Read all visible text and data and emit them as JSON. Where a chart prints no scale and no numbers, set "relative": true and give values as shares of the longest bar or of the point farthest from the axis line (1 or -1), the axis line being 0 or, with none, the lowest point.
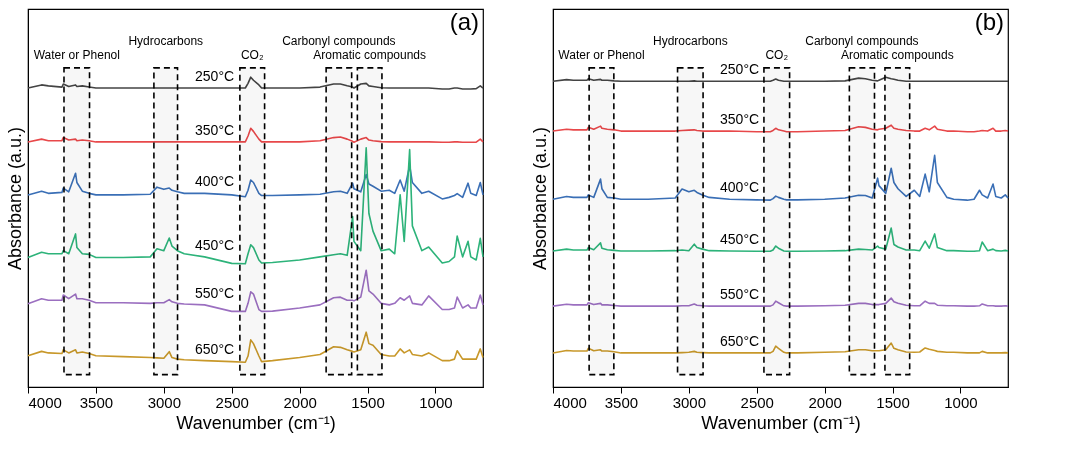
{
  "chart_data": [
    {
      "type": "line",
      "title": "(a)",
      "xlabel": "Wavenumber (cm⁻¹)",
      "ylabel": "Absorbance (a.u.)",
      "relative": true,
      "xlim": [
        4000,
        650
      ],
      "xticks": [
        4000,
        3500,
        3000,
        2500,
        2000,
        1500,
        1000
      ],
      "x": [
        4000,
        3900,
        3850,
        3750,
        3740,
        3700,
        3650,
        3640,
        3600,
        3550,
        3500,
        3300,
        3100,
        3050,
        3000,
        2960,
        2940,
        2900,
        2850,
        2700,
        2500,
        2400,
        2380,
        2360,
        2340,
        2300,
        2280,
        2200,
        2000,
        1850,
        1750,
        1700,
        1650,
        1610,
        1600,
        1550,
        1510,
        1490,
        1460,
        1400,
        1340,
        1300,
        1260,
        1230,
        1190,
        1170,
        1100,
        1050,
        950,
        900,
        860,
        840,
        800,
        760,
        740,
        700,
        670,
        650
      ],
      "series": [
        {
          "name": "250°C",
          "color": "#444444",
          "values": [
            0.965,
            0.975,
            0.972,
            0.968,
            0.978,
            0.97,
            0.975,
            0.97,
            0.972,
            0.968,
            0.965,
            0.965,
            0.965,
            0.965,
            0.965,
            0.965,
            0.965,
            0.965,
            0.965,
            0.965,
            0.965,
            0.965,
            0.98,
            1.0,
            0.99,
            0.975,
            0.965,
            0.965,
            0.965,
            0.968,
            0.978,
            0.978,
            0.972,
            0.968,
            0.965,
            0.978,
            0.98,
            0.972,
            0.97,
            0.966,
            0.965,
            0.965,
            0.965,
            0.965,
            0.965,
            0.965,
            0.965,
            0.965,
            0.962,
            0.962,
            0.965,
            0.965,
            0.962,
            0.962,
            0.962,
            0.963,
            0.972,
            0.965
          ]
        },
        {
          "name": "350°C",
          "color": "#e8484a",
          "values": [
            0.791,
            0.8,
            0.795,
            0.795,
            0.805,
            0.797,
            0.8,
            0.795,
            0.797,
            0.795,
            0.791,
            0.791,
            0.791,
            0.791,
            0.791,
            0.791,
            0.791,
            0.791,
            0.791,
            0.791,
            0.791,
            0.791,
            0.81,
            0.835,
            0.825,
            0.8,
            0.791,
            0.791,
            0.791,
            0.795,
            0.805,
            0.807,
            0.8,
            0.793,
            0.79,
            0.8,
            0.805,
            0.797,
            0.795,
            0.792,
            0.791,
            0.791,
            0.791,
            0.791,
            0.791,
            0.791,
            0.791,
            0.791,
            0.79,
            0.79,
            0.791,
            0.791,
            0.79,
            0.79,
            0.79,
            0.79,
            0.8,
            0.791
          ]
        },
        {
          "name": "400°C",
          "color": "#3a6fb6",
          "values": [
            0.62,
            0.632,
            0.625,
            0.628,
            0.642,
            0.63,
            0.69,
            0.66,
            0.632,
            0.625,
            0.62,
            0.62,
            0.622,
            0.645,
            0.638,
            0.642,
            0.635,
            0.63,
            0.625,
            0.625,
            0.62,
            0.614,
            0.635,
            0.668,
            0.66,
            0.625,
            0.618,
            0.618,
            0.62,
            0.622,
            0.63,
            0.632,
            0.625,
            0.658,
            0.64,
            0.63,
            0.686,
            0.655,
            0.648,
            0.632,
            0.635,
            0.625,
            0.668,
            0.632,
            0.715,
            0.66,
            0.625,
            0.632,
            0.607,
            0.612,
            0.618,
            0.624,
            0.612,
            0.658,
            0.625,
            0.618,
            0.66,
            0.62
          ]
        },
        {
          "name": "450°C",
          "color": "#2db37a",
          "values": [
            0.418,
            0.435,
            0.43,
            0.43,
            0.44,
            0.43,
            0.494,
            0.45,
            0.43,
            0.428,
            0.418,
            0.418,
            0.42,
            0.446,
            0.44,
            0.481,
            0.455,
            0.44,
            0.43,
            0.42,
            0.399,
            0.398,
            0.43,
            0.459,
            0.45,
            0.41,
            0.4,
            0.402,
            0.41,
            0.42,
            0.427,
            0.43,
            0.425,
            0.55,
            0.47,
            0.44,
            0.772,
            0.56,
            0.503,
            0.44,
            0.445,
            0.43,
            0.62,
            0.47,
            0.766,
            0.52,
            0.44,
            0.452,
            0.4,
            0.405,
            0.42,
            0.487,
            0.42,
            0.47,
            0.42,
            0.41,
            0.48,
            0.42
          ]
        },
        {
          "name": "550°C",
          "color": "#9b6fc0",
          "values": [
            0.269,
            0.285,
            0.28,
            0.28,
            0.297,
            0.285,
            0.3,
            0.285,
            0.285,
            0.28,
            0.272,
            0.272,
            0.27,
            0.272,
            0.272,
            0.282,
            0.275,
            0.27,
            0.268,
            0.265,
            0.244,
            0.244,
            0.27,
            0.307,
            0.3,
            0.25,
            0.244,
            0.245,
            0.255,
            0.265,
            0.288,
            0.29,
            0.28,
            0.28,
            0.278,
            0.29,
            0.377,
            0.31,
            0.3,
            0.27,
            0.265,
            0.27,
            0.288,
            0.28,
            0.294,
            0.27,
            0.265,
            0.294,
            0.25,
            0.25,
            0.255,
            0.29,
            0.255,
            0.265,
            0.255,
            0.255,
            0.297,
            0.265
          ]
        },
        {
          "name": "650°C",
          "color": "#c8982a",
          "values": [
            0.101,
            0.115,
            0.11,
            0.108,
            0.12,
            0.11,
            0.12,
            0.11,
            0.113,
            0.108,
            0.101,
            0.098,
            0.095,
            0.094,
            0.093,
            0.114,
            0.095,
            0.09,
            0.088,
            0.085,
            0.082,
            0.08,
            0.1,
            0.152,
            0.14,
            0.1,
            0.082,
            0.085,
            0.095,
            0.105,
            0.13,
            0.128,
            0.12,
            0.115,
            0.113,
            0.12,
            0.177,
            0.14,
            0.135,
            0.105,
            0.1,
            0.1,
            0.123,
            0.11,
            0.12,
            0.105,
            0.1,
            0.11,
            0.085,
            0.085,
            0.09,
            0.117,
            0.09,
            0.09,
            0.09,
            0.09,
            0.123,
            0.095
          ]
        }
      ],
      "bands": [
        {
          "axis": "x",
          "from": 3735,
          "to": 3547,
          "label": "Water or Phenol"
        },
        {
          "axis": "x",
          "from": 3073,
          "to": 2899,
          "label": "Hydrocarbons"
        },
        {
          "axis": "x",
          "from": 2440,
          "to": 2258,
          "label": "CO₂"
        },
        {
          "axis": "x",
          "from": 1805,
          "to": 1617,
          "label": "Carbonyl compounds"
        },
        {
          "axis": "x",
          "from": 1575,
          "to": 1394,
          "label": "Aromatic compounds"
        }
      ]
    },
    {
      "type": "line",
      "title": "(b)",
      "xlabel": "Wavenumber (cm⁻¹)",
      "ylabel": "Absorbance (a.u.)",
      "relative": true,
      "xlim": [
        4000,
        650
      ],
      "xticks": [
        4000,
        3500,
        3000,
        2500,
        2000,
        1500,
        1000
      ],
      "x": [
        4000,
        3900,
        3850,
        3750,
        3740,
        3700,
        3650,
        3640,
        3600,
        3550,
        3500,
        3300,
        3100,
        3050,
        3000,
        2960,
        2940,
        2900,
        2850,
        2700,
        2500,
        2400,
        2380,
        2360,
        2340,
        2300,
        2280,
        2200,
        2000,
        1850,
        1750,
        1700,
        1650,
        1610,
        1600,
        1550,
        1510,
        1490,
        1460,
        1400,
        1340,
        1300,
        1260,
        1230,
        1190,
        1170,
        1100,
        1050,
        950,
        900,
        860,
        840,
        800,
        760,
        740,
        700,
        670,
        650
      ],
      "series": [
        {
          "name": "250°C",
          "color": "#444444",
          "values": [
            0.987,
            0.992,
            0.99,
            0.99,
            0.995,
            0.99,
            0.993,
            0.99,
            0.99,
            0.988,
            0.987,
            0.987,
            0.987,
            0.987,
            0.987,
            0.988,
            0.987,
            0.987,
            0.987,
            0.987,
            0.987,
            0.987,
            0.99,
            0.994,
            0.99,
            0.987,
            0.987,
            0.987,
            0.987,
            0.988,
            0.997,
            0.995,
            0.99,
            0.988,
            0.99,
            1.0,
            0.995,
            0.993,
            0.99,
            0.987,
            0.987,
            0.987,
            0.987,
            0.987,
            0.987,
            0.987,
            0.987,
            0.987,
            0.987,
            0.987,
            0.987,
            0.987,
            0.987,
            0.987,
            0.987,
            0.987,
            0.987,
            0.987
          ]
        },
        {
          "name": "350°C",
          "color": "#e8484a",
          "values": [
            0.826,
            0.832,
            0.83,
            0.83,
            0.838,
            0.832,
            0.842,
            0.835,
            0.832,
            0.83,
            0.826,
            0.826,
            0.826,
            0.828,
            0.829,
            0.83,
            0.828,
            0.826,
            0.826,
            0.826,
            0.824,
            0.824,
            0.828,
            0.835,
            0.83,
            0.826,
            0.824,
            0.824,
            0.826,
            0.828,
            0.84,
            0.838,
            0.832,
            0.83,
            0.832,
            0.835,
            0.845,
            0.835,
            0.832,
            0.828,
            0.826,
            0.826,
            0.835,
            0.83,
            0.842,
            0.832,
            0.826,
            0.826,
            0.824,
            0.824,
            0.826,
            0.828,
            0.826,
            0.835,
            0.826,
            0.826,
            0.828,
            0.826
          ]
        },
        {
          "name": "400°C",
          "color": "#3a6fb6",
          "values": [
            0.606,
            0.615,
            0.612,
            0.612,
            0.62,
            0.612,
            0.671,
            0.64,
            0.612,
            0.61,
            0.606,
            0.606,
            0.61,
            0.639,
            0.63,
            0.635,
            0.628,
            0.62,
            0.612,
            0.606,
            0.604,
            0.603,
            0.608,
            0.616,
            0.612,
            0.606,
            0.604,
            0.604,
            0.606,
            0.61,
            0.619,
            0.618,
            0.61,
            0.674,
            0.65,
            0.625,
            0.706,
            0.66,
            0.64,
            0.615,
            0.635,
            0.615,
            0.687,
            0.63,
            0.748,
            0.66,
            0.612,
            0.606,
            0.603,
            0.606,
            0.635,
            0.62,
            0.61,
            0.655,
            0.615,
            0.61,
            0.62,
            0.61
          ]
        },
        {
          "name": "450°C",
          "color": "#2db37a",
          "values": [
            0.439,
            0.445,
            0.442,
            0.442,
            0.45,
            0.443,
            0.465,
            0.448,
            0.443,
            0.441,
            0.439,
            0.439,
            0.44,
            0.442,
            0.44,
            0.461,
            0.45,
            0.445,
            0.44,
            0.439,
            0.438,
            0.438,
            0.442,
            0.455,
            0.448,
            0.439,
            0.438,
            0.438,
            0.439,
            0.44,
            0.445,
            0.444,
            0.442,
            0.455,
            0.45,
            0.445,
            0.513,
            0.46,
            0.452,
            0.442,
            0.442,
            0.44,
            0.471,
            0.448,
            0.494,
            0.45,
            0.44,
            0.44,
            0.438,
            0.438,
            0.44,
            0.468,
            0.44,
            0.445,
            0.44,
            0.439,
            0.441,
            0.439
          ]
        },
        {
          "name": "550°C",
          "color": "#9b6fc0",
          "values": [
            0.261,
            0.267,
            0.265,
            0.265,
            0.272,
            0.266,
            0.27,
            0.265,
            0.265,
            0.263,
            0.261,
            0.261,
            0.261,
            0.262,
            0.262,
            0.268,
            0.264,
            0.262,
            0.261,
            0.261,
            0.261,
            0.261,
            0.265,
            0.277,
            0.272,
            0.262,
            0.261,
            0.261,
            0.262,
            0.264,
            0.27,
            0.27,
            0.266,
            0.266,
            0.266,
            0.27,
            0.287,
            0.275,
            0.27,
            0.264,
            0.262,
            0.262,
            0.277,
            0.27,
            0.27,
            0.264,
            0.262,
            0.262,
            0.261,
            0.261,
            0.262,
            0.268,
            0.262,
            0.262,
            0.261,
            0.261,
            0.262,
            0.261
          ]
        },
        {
          "name": "650°C",
          "color": "#c8982a",
          "values": [
            0.11,
            0.118,
            0.116,
            0.116,
            0.125,
            0.117,
            0.12,
            0.116,
            0.116,
            0.114,
            0.11,
            0.11,
            0.11,
            0.111,
            0.112,
            0.115,
            0.112,
            0.111,
            0.11,
            0.11,
            0.11,
            0.11,
            0.115,
            0.132,
            0.125,
            0.112,
            0.11,
            0.11,
            0.112,
            0.114,
            0.12,
            0.12,
            0.117,
            0.117,
            0.117,
            0.12,
            0.142,
            0.125,
            0.12,
            0.113,
            0.112,
            0.113,
            0.126,
            0.122,
            0.118,
            0.115,
            0.112,
            0.112,
            0.11,
            0.11,
            0.11,
            0.115,
            0.11,
            0.11,
            0.11,
            0.11,
            0.111,
            0.11
          ]
        }
      ],
      "bands": [
        {
          "axis": "x",
          "from": 3734,
          "to": 3552,
          "label": "Water or Phenol"
        },
        {
          "axis": "x",
          "from": 3083,
          "to": 2895,
          "label": "Hydrocarbons"
        },
        {
          "axis": "x",
          "from": 2447,
          "to": 2258,
          "label": "CO₂"
        },
        {
          "axis": "x",
          "from": 1818,
          "to": 1633,
          "label": "Carbonyl compounds"
        },
        {
          "axis": "x",
          "from": 1556,
          "to": 1374,
          "label": "Aromatic compounds"
        }
      ]
    }
  ]
}
